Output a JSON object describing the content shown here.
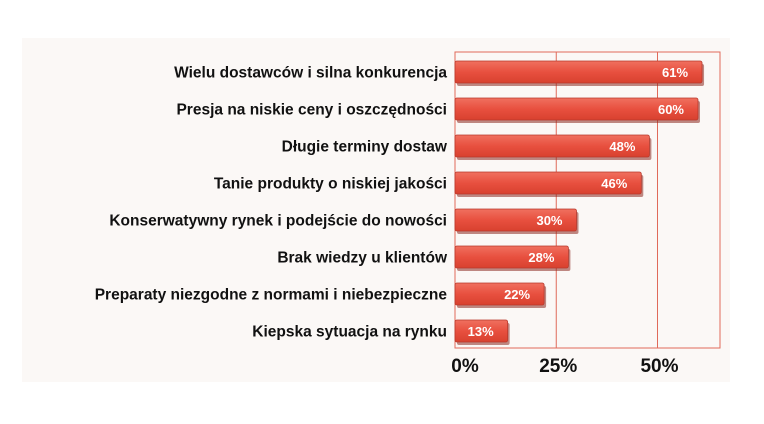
{
  "chart_data": {
    "type": "bar",
    "orientation": "horizontal",
    "categories": [
      "Wielu dostawców i silna konkurencja",
      "Presja na niskie ceny i oszczędności",
      "Długie terminy dostaw",
      "Tanie produkty o niskiej jakości",
      "Konserwatywny rynek i podejście do nowości",
      "Brak wiedzy u klientów",
      "Preparaty niezgodne z normami i niebezpieczne",
      "Kiepska sytuacja na rynku"
    ],
    "values": [
      61,
      60,
      48,
      46,
      30,
      28,
      22,
      13
    ],
    "value_labels": [
      "61%",
      "60%",
      "48%",
      "46%",
      "30%",
      "28%",
      "22%",
      "13%"
    ],
    "xlim": [
      0,
      63
    ],
    "x_ticks": [
      0,
      25,
      50
    ],
    "x_tick_labels": [
      "0%",
      "25%",
      "50%"
    ],
    "grid": true,
    "colors": {
      "bar": "#e8503f",
      "bar_edge": "#b8392c",
      "grid": "#e06a5a",
      "background": "#fbf8f6"
    }
  }
}
